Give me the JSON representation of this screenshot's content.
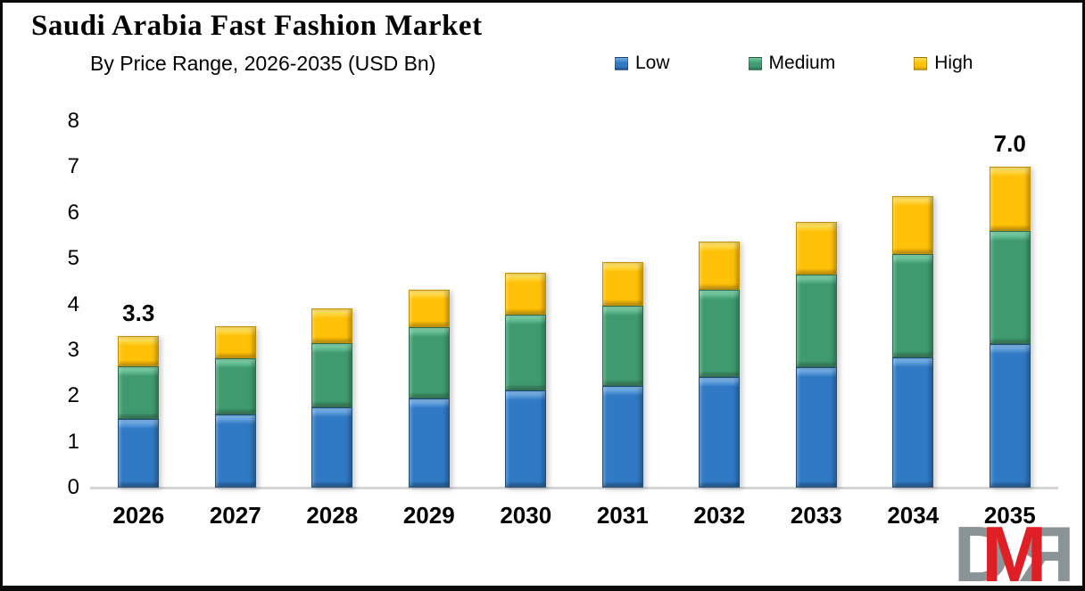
{
  "title": "Saudi Arabia Fast Fashion Market",
  "subtitle": "By Price Range, 2026-2035 (USD Bn)",
  "chart_data": {
    "type": "bar",
    "stacked": true,
    "title": "Saudi Arabia Fast Fashion Market",
    "subtitle": "By Price Range, 2026-2035 (USD Bn)",
    "value_unit": "USD Bn",
    "categories": [
      "2026",
      "2027",
      "2028",
      "2029",
      "2030",
      "2031",
      "2032",
      "2033",
      "2034",
      "2035"
    ],
    "series": [
      {
        "name": "Low",
        "color": "#3079C4",
        "light": "#6FABE4",
        "dark": "#1D4E7E",
        "values": [
          1.5,
          1.6,
          1.75,
          1.95,
          2.12,
          2.22,
          2.42,
          2.62,
          2.85,
          3.14
        ]
      },
      {
        "name": "Medium",
        "color": "#3F9B6F",
        "light": "#74C9A0",
        "dark": "#2A6C4B",
        "values": [
          1.15,
          1.22,
          1.4,
          1.55,
          1.65,
          1.75,
          1.9,
          2.03,
          2.25,
          2.46
        ]
      },
      {
        "name": "High",
        "color": "#FFC107",
        "light": "#FFDE5A",
        "dark": "#C49000",
        "values": [
          0.65,
          0.7,
          0.77,
          0.83,
          0.92,
          0.95,
          1.06,
          1.16,
          1.26,
          1.4
        ]
      }
    ],
    "totals": [
      3.3,
      3.52,
      3.92,
      4.33,
      4.69,
      4.92,
      5.38,
      5.81,
      6.36,
      7.0
    ],
    "annotations": [
      {
        "category": "2026",
        "text": "3.3"
      },
      {
        "category": "2035",
        "text": "7.0"
      }
    ],
    "ylim": [
      0,
      8
    ],
    "yticks": [
      0,
      1,
      2,
      3,
      4,
      5,
      6,
      7,
      8
    ],
    "grid": false,
    "legend_position": "top",
    "legend_entries": [
      "Low",
      "Medium",
      "High"
    ]
  },
  "legend": {
    "items": [
      "Low",
      "Medium",
      "High"
    ]
  },
  "logo": {
    "letters": [
      "D",
      "M",
      "R"
    ],
    "gray": "#8A9396",
    "red": "#E01E25"
  }
}
